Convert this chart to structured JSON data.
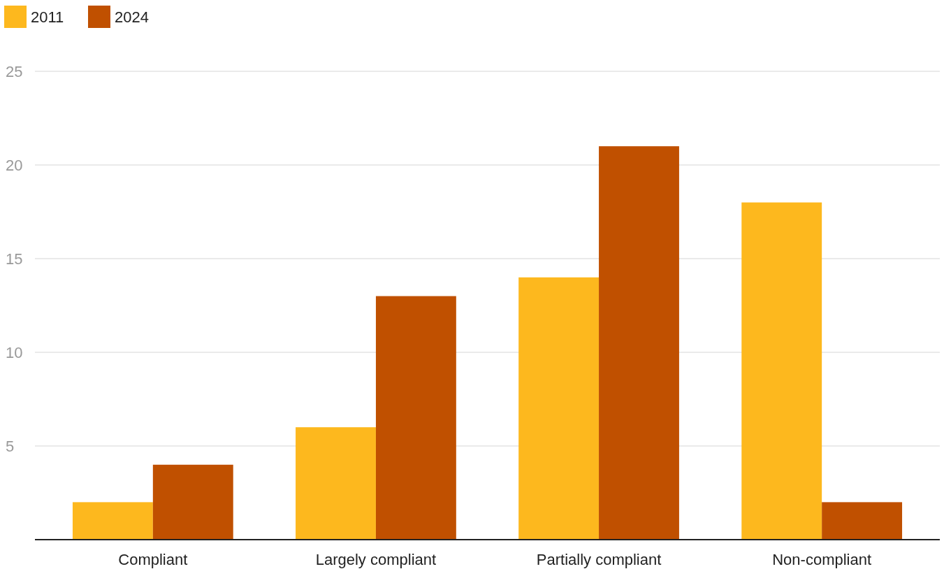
{
  "chart_data": {
    "type": "bar",
    "categories": [
      "Compliant",
      "Largely compliant",
      "Partially compliant",
      "Non-compliant"
    ],
    "series": [
      {
        "name": "2011",
        "color": "#fdb81e",
        "values": [
          2,
          6,
          14,
          18
        ]
      },
      {
        "name": "2024",
        "color": "#c05000",
        "values": [
          4,
          13,
          21,
          2
        ]
      }
    ],
    "ylim": [
      0,
      25
    ],
    "yticks": [
      5,
      10,
      15,
      20,
      25
    ],
    "grid": "y",
    "legend": "top left"
  }
}
